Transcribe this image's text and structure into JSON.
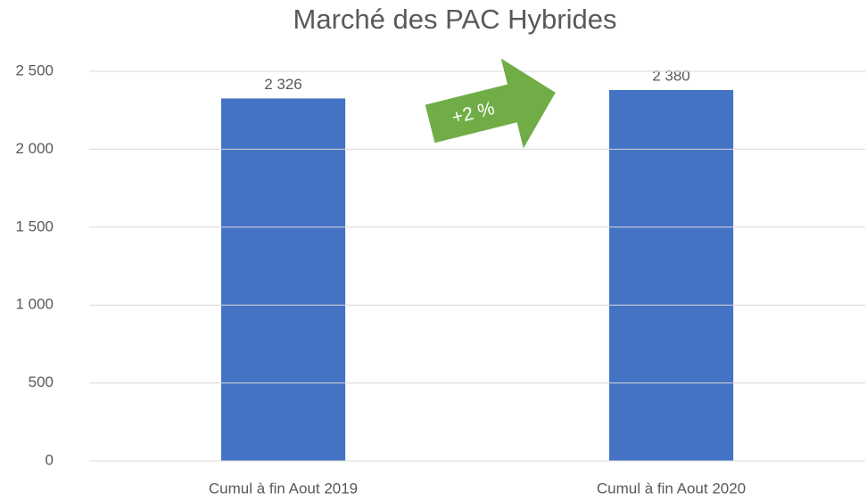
{
  "chart_data": {
    "type": "bar",
    "title": "Marché des PAC Hybrides",
    "categories": [
      "Cumul à fin Aout 2019",
      "Cumul à fin Aout 2020"
    ],
    "values": [
      2326,
      2380
    ],
    "value_labels": [
      "2 326",
      "2 380"
    ],
    "color": "#4472c4",
    "ylim": [
      0,
      2500
    ],
    "yticks": [
      0,
      500,
      {
        "value": 1000,
        "label": "1 000"
      },
      {
        "value": 1500,
        "label": "1 500"
      },
      {
        "value": 2000,
        "label": "2 000"
      },
      {
        "value": 2500,
        "label": "2 500"
      }
    ],
    "grid": true,
    "annotation": "+2 %"
  }
}
